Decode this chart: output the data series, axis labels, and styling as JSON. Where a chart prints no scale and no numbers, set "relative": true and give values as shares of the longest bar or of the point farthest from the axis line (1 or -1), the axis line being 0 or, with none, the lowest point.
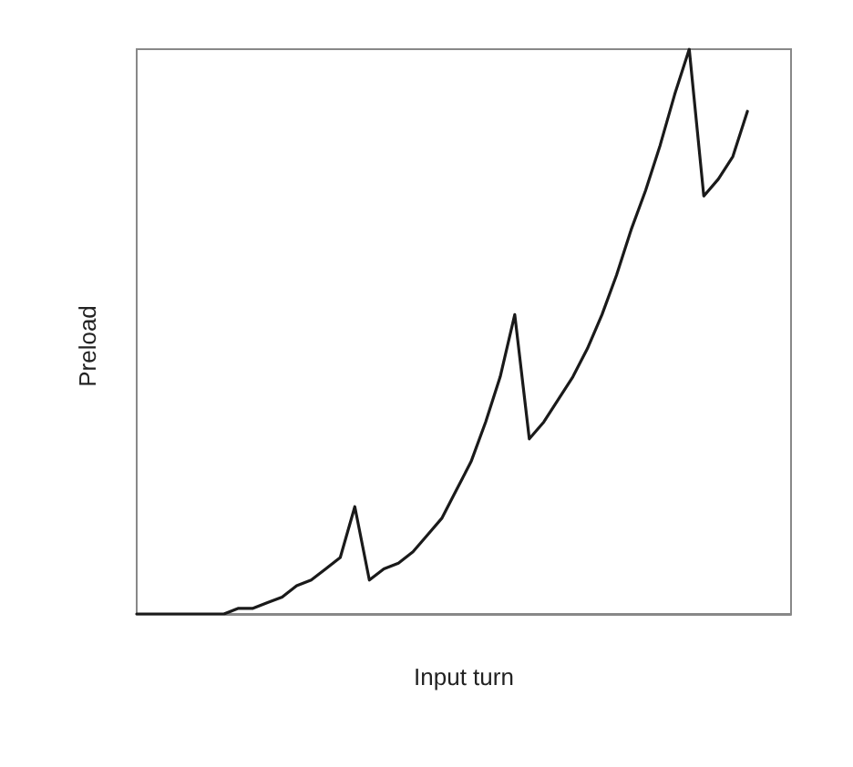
{
  "chart_data": {
    "type": "line",
    "relative": true,
    "xlabel": "Input turn",
    "ylabel": "Preload",
    "categories": [
      null,
      null,
      null,
      null,
      null,
      null,
      null,
      null,
      null,
      null,
      null,
      null,
      null,
      null,
      null,
      null,
      null,
      null,
      null,
      null,
      null,
      null,
      null,
      null,
      null,
      null,
      null,
      null,
      null,
      null,
      null,
      null,
      null,
      null,
      null,
      null,
      null,
      null,
      null,
      null,
      null,
      null,
      null,
      null,
      null,
      null
    ],
    "series": [
      {
        "color": "#1a1a1a",
        "values": [
          0,
          0,
          0,
          0,
          0,
          0,
          0,
          0.01,
          0.01,
          0.02,
          0.03,
          0.05,
          0.06,
          0.08,
          0.1,
          0.19,
          0.06,
          0.08,
          0.09,
          0.11,
          0.14,
          0.17,
          0.22,
          0.27,
          0.34,
          0.42,
          0.53,
          0.31,
          0.34,
          0.38,
          0.42,
          0.47,
          0.53,
          0.6,
          0.68,
          0.75,
          0.83,
          0.92,
          1,
          0.74,
          0.77,
          0.81,
          0.89,
          null,
          null,
          null
        ]
      }
    ]
  }
}
